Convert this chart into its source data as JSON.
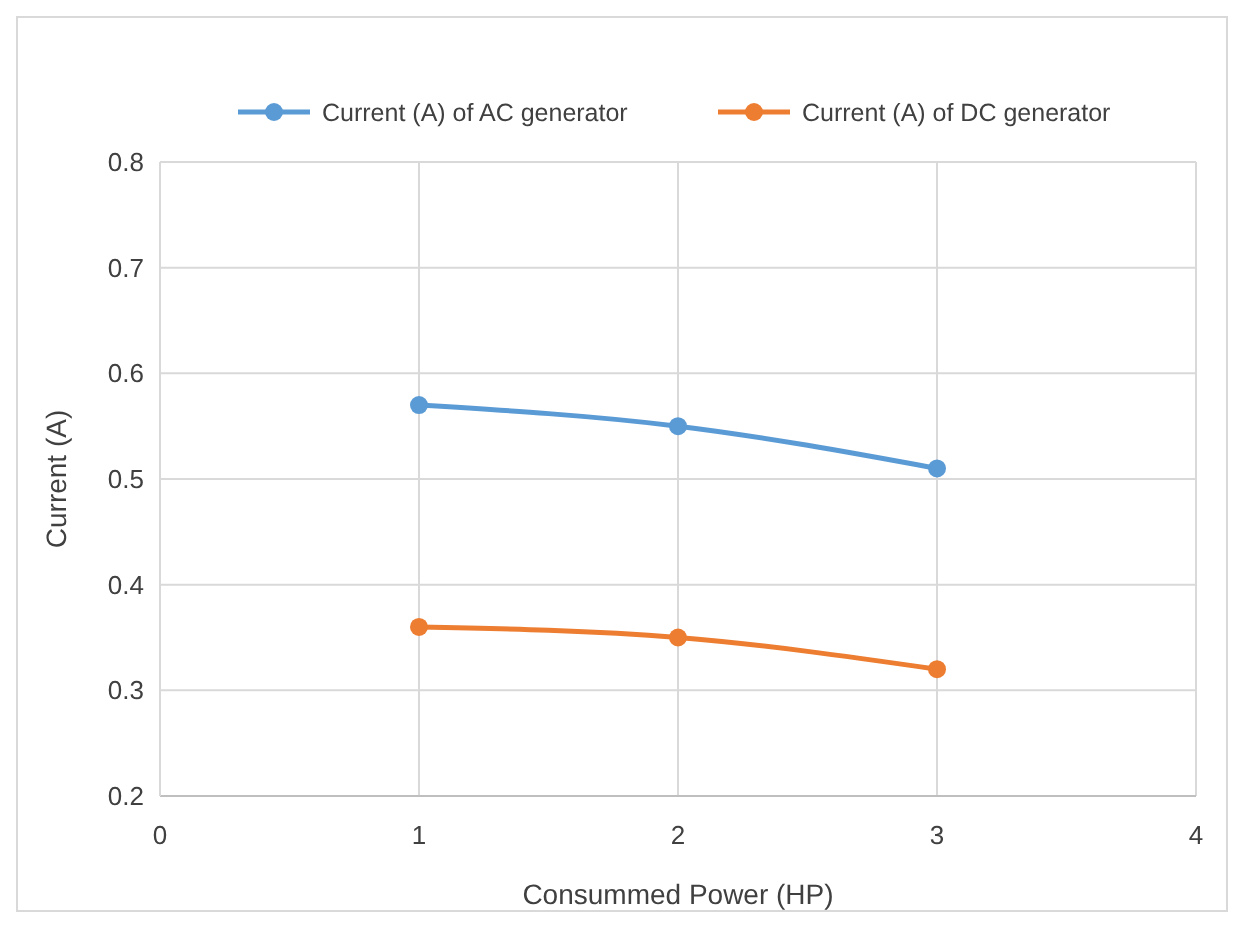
{
  "chart_data": {
    "type": "line",
    "xlabel": "Consummed Power (HP)",
    "ylabel": "Current (A)",
    "x": [
      1,
      2,
      3
    ],
    "series": [
      {
        "name": "Current (A) of AC generator",
        "color": "#5b9bd5",
        "values": [
          0.57,
          0.55,
          0.51
        ]
      },
      {
        "name": "Current (A) of DC generator",
        "color": "#ed7d31",
        "values": [
          0.36,
          0.35,
          0.32
        ]
      }
    ],
    "xlim": [
      0,
      4
    ],
    "xticks": [
      0,
      1,
      2,
      3,
      4
    ],
    "ylim": [
      0.2,
      0.8
    ],
    "yticks": [
      0.2,
      0.3,
      0.4,
      0.5,
      0.6,
      0.7,
      0.8
    ],
    "grid": true,
    "legend": "top",
    "marker": "circle",
    "line_style": "solid"
  }
}
